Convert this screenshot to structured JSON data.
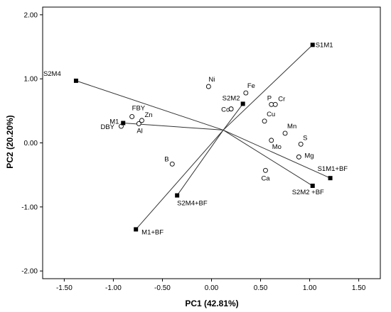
{
  "chart_data": {
    "type": "scatter",
    "title": "",
    "xlabel": "PC1 (42.81%)",
    "ylabel": "PC2 (20.20%)",
    "xlim": [
      -1.72,
      1.72
    ],
    "ylim": [
      -2.12,
      2.12
    ],
    "x_ticks": [
      "-1.50",
      "-1.00",
      "-0.50",
      "0.00",
      "0.50",
      "1.00",
      "1.50"
    ],
    "y_ticks": [
      "2.00",
      "1.00",
      "0.00",
      "-1.00",
      "-2.00"
    ],
    "x_tick_values": [
      -1.5,
      -1.0,
      -0.5,
      0.0,
      0.5,
      1.0,
      1.5
    ],
    "y_tick_values": [
      2.0,
      1.0,
      0.0,
      -1.0,
      -2.0
    ],
    "origin": [
      0.12,
      0.2
    ],
    "treatments": [
      {
        "label": "S1M1",
        "x": 1.03,
        "y": 1.53
      },
      {
        "label": "S2M4",
        "x": -1.38,
        "y": 0.97
      },
      {
        "label": "S2M2",
        "x": 0.32,
        "y": 0.61
      },
      {
        "label": "M1",
        "x": -0.9,
        "y": 0.31
      },
      {
        "label": "S1M1+BF",
        "x": 1.21,
        "y": -0.55
      },
      {
        "label": "S2M2 +BF",
        "x": 1.03,
        "y": -0.67
      },
      {
        "label": "S2M4+BF",
        "x": -0.35,
        "y": -0.82
      },
      {
        "label": "M1+BF",
        "x": -0.77,
        "y": -1.35
      }
    ],
    "variables": [
      {
        "label": "Ni",
        "x": -0.03,
        "y": 0.88
      },
      {
        "label": "Fe",
        "x": 0.35,
        "y": 0.78
      },
      {
        "label": "Co",
        "x": 0.2,
        "y": 0.53
      },
      {
        "label": "P",
        "x": 0.61,
        "y": 0.6
      },
      {
        "label": "Cr",
        "x": 0.65,
        "y": 0.6
      },
      {
        "label": "Cu",
        "x": 0.54,
        "y": 0.34
      },
      {
        "label": "Mn",
        "x": 0.75,
        "y": 0.15
      },
      {
        "label": "S",
        "x": 0.91,
        "y": -0.02
      },
      {
        "label": "Mo",
        "x": 0.61,
        "y": 0.04
      },
      {
        "label": "Mg",
        "x": 0.89,
        "y": -0.22
      },
      {
        "label": "Ca",
        "x": 0.55,
        "y": -0.43
      },
      {
        "label": "B",
        "x": -0.4,
        "y": -0.33
      },
      {
        "label": "FBY",
        "x": -0.81,
        "y": 0.41
      },
      {
        "label": "Zn",
        "x": -0.71,
        "y": 0.35
      },
      {
        "label": "DBY",
        "x": -0.92,
        "y": 0.26
      },
      {
        "label": "Al",
        "x": -0.74,
        "y": 0.3
      }
    ]
  }
}
